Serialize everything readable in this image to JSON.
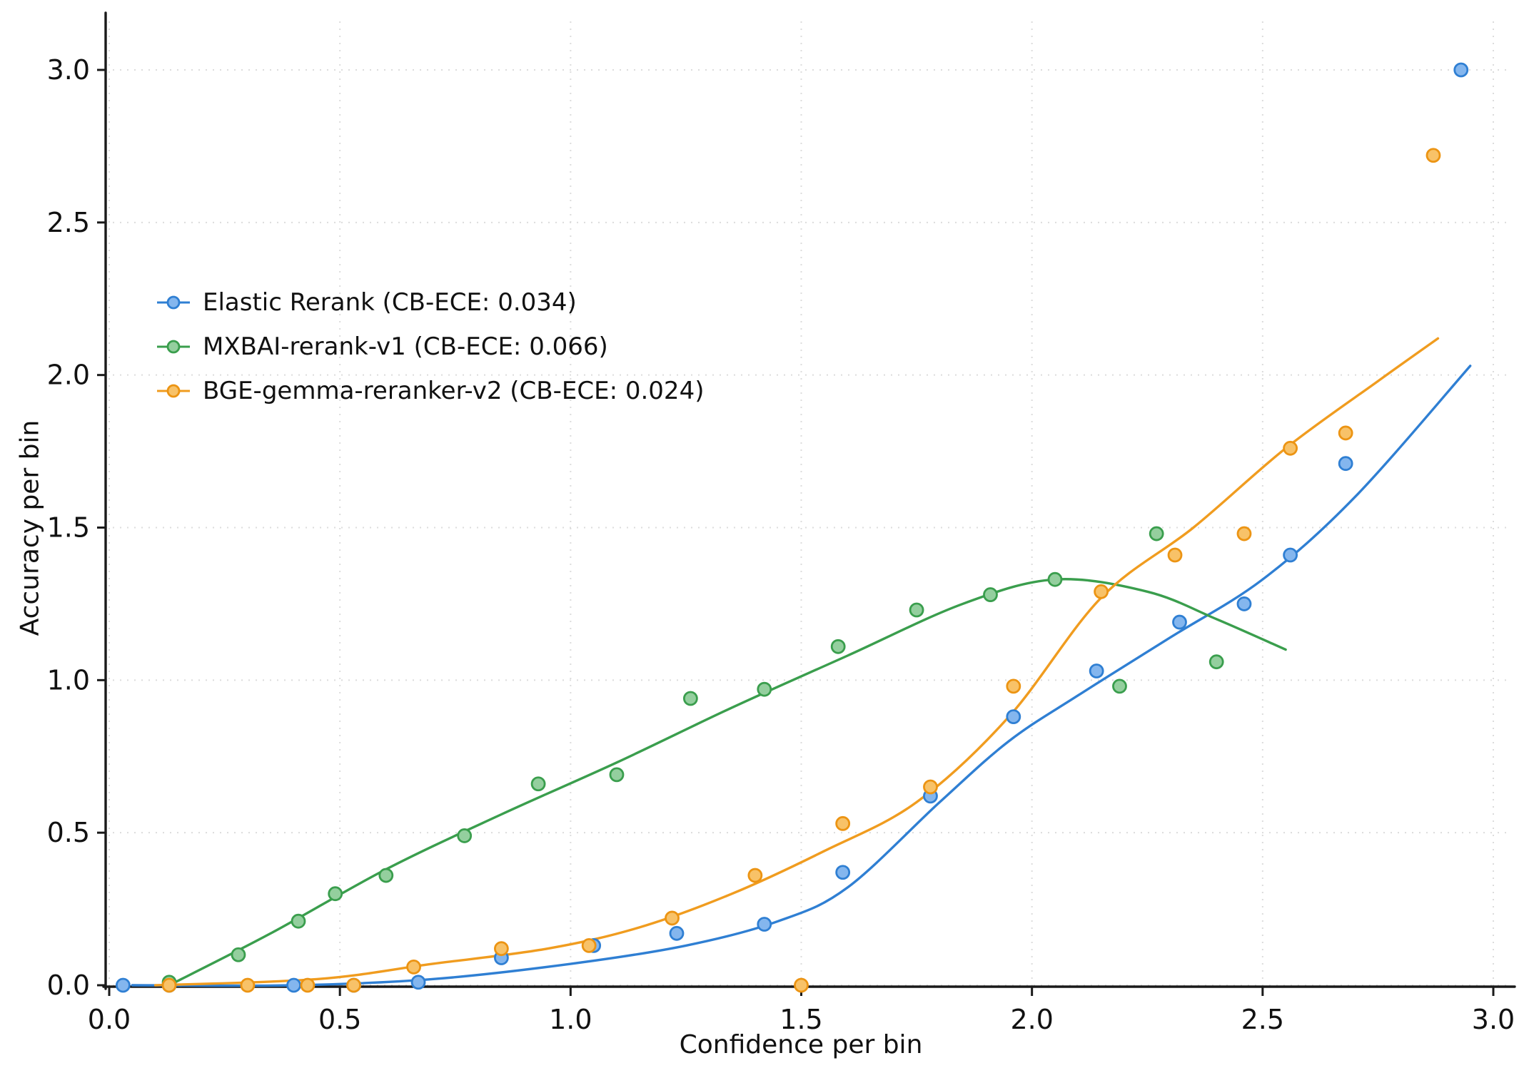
{
  "chart_data": {
    "type": "scatter",
    "title": "",
    "xlabel": "Confidence per bin",
    "ylabel": "Accuracy per bin",
    "xlim": [
      0,
      3.05
    ],
    "ylim": [
      0,
      3.07
    ],
    "x_ticks": [
      0.0,
      0.5,
      1.0,
      1.5,
      2.0,
      2.5,
      3.0
    ],
    "y_ticks": [
      0.0,
      0.5,
      1.0,
      1.5,
      2.0,
      2.5,
      3.0
    ],
    "grid": true,
    "grid_color": "#dcdcdc",
    "axis_color": "#1a1a1a",
    "legend_position": "upper-left-inside",
    "series": [
      {
        "name": "Elastic Rerank",
        "legend": "Elastic Rerank (CB-ECE: 0.034)",
        "cb_ece": 0.034,
        "line_color": "#2f7fd3",
        "marker_fill": "#84b6ee",
        "marker_stroke": "#2f7fd3",
        "points": [
          [
            0.03,
            0.0
          ],
          [
            0.13,
            0.0
          ],
          [
            0.4,
            0.0
          ],
          [
            0.53,
            0.0
          ],
          [
            0.67,
            0.01
          ],
          [
            0.85,
            0.09
          ],
          [
            1.05,
            0.13
          ],
          [
            1.23,
            0.17
          ],
          [
            1.42,
            0.2
          ],
          [
            1.59,
            0.37
          ],
          [
            1.78,
            0.62
          ],
          [
            1.96,
            0.88
          ],
          [
            2.14,
            1.03
          ],
          [
            2.32,
            1.19
          ],
          [
            2.46,
            1.25
          ],
          [
            2.56,
            1.41
          ],
          [
            2.68,
            1.71
          ],
          [
            2.93,
            3.0
          ]
        ],
        "curve": [
          [
            0.05,
            0.0
          ],
          [
            0.4,
            0.0
          ],
          [
            0.7,
            0.02
          ],
          [
            1.0,
            0.07
          ],
          [
            1.25,
            0.13
          ],
          [
            1.45,
            0.21
          ],
          [
            1.6,
            0.32
          ],
          [
            1.8,
            0.6
          ],
          [
            1.95,
            0.8
          ],
          [
            2.1,
            0.95
          ],
          [
            2.3,
            1.14
          ],
          [
            2.5,
            1.33
          ],
          [
            2.7,
            1.6
          ],
          [
            2.95,
            2.03
          ]
        ]
      },
      {
        "name": "MXBAI-rerank-v1",
        "legend": "MXBAI-rerank-v1 (CB-ECE: 0.066)",
        "cb_ece": 0.066,
        "line_color": "#3a9e4d",
        "marker_fill": "#94cf9e",
        "marker_stroke": "#3a9e4d",
        "points": [
          [
            0.13,
            0.01
          ],
          [
            0.28,
            0.1
          ],
          [
            0.41,
            0.21
          ],
          [
            0.49,
            0.3
          ],
          [
            0.6,
            0.36
          ],
          [
            0.77,
            0.49
          ],
          [
            0.93,
            0.66
          ],
          [
            1.1,
            0.69
          ],
          [
            1.26,
            0.94
          ],
          [
            1.42,
            0.97
          ],
          [
            1.58,
            1.11
          ],
          [
            1.75,
            1.23
          ],
          [
            1.91,
            1.28
          ],
          [
            2.05,
            1.33
          ],
          [
            2.19,
            0.98
          ],
          [
            2.27,
            1.48
          ],
          [
            2.4,
            1.06
          ]
        ],
        "curve": [
          [
            0.13,
            0.0
          ],
          [
            0.35,
            0.17
          ],
          [
            0.6,
            0.38
          ],
          [
            0.85,
            0.56
          ],
          [
            1.1,
            0.73
          ],
          [
            1.35,
            0.91
          ],
          [
            1.6,
            1.08
          ],
          [
            1.85,
            1.25
          ],
          [
            2.05,
            1.33
          ],
          [
            2.25,
            1.29
          ],
          [
            2.4,
            1.2
          ],
          [
            2.55,
            1.1
          ]
        ]
      },
      {
        "name": "BGE-gemma-reranker-v2",
        "legend": "BGE-gemma-reranker-v2 (CB-ECE: 0.024)",
        "cb_ece": 0.024,
        "line_color": "#f09c1f",
        "marker_fill": "#f8c268",
        "marker_stroke": "#ec9413",
        "points": [
          [
            0.13,
            0.0
          ],
          [
            0.3,
            0.0
          ],
          [
            0.43,
            0.0
          ],
          [
            0.53,
            0.0
          ],
          [
            0.66,
            0.06
          ],
          [
            0.85,
            0.12
          ],
          [
            1.04,
            0.13
          ],
          [
            1.22,
            0.22
          ],
          [
            1.4,
            0.36
          ],
          [
            1.5,
            0.0
          ],
          [
            1.59,
            0.53
          ],
          [
            1.78,
            0.65
          ],
          [
            1.96,
            0.98
          ],
          [
            2.15,
            1.29
          ],
          [
            2.31,
            1.41
          ],
          [
            2.46,
            1.48
          ],
          [
            2.56,
            1.76
          ],
          [
            2.68,
            1.81
          ],
          [
            2.87,
            2.72
          ]
        ],
        "curve": [
          [
            0.1,
            0.0
          ],
          [
            0.45,
            0.02
          ],
          [
            0.7,
            0.07
          ],
          [
            0.95,
            0.12
          ],
          [
            1.15,
            0.19
          ],
          [
            1.35,
            0.3
          ],
          [
            1.55,
            0.44
          ],
          [
            1.75,
            0.6
          ],
          [
            1.95,
            0.88
          ],
          [
            2.15,
            1.27
          ],
          [
            2.35,
            1.5
          ],
          [
            2.55,
            1.76
          ],
          [
            2.75,
            1.98
          ],
          [
            2.88,
            2.12
          ]
        ]
      }
    ]
  }
}
